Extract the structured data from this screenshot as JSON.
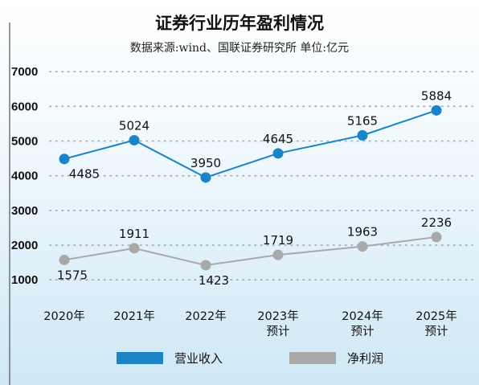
{
  "chart_data": {
    "type": "line",
    "title": "证券行业历年盈利情况",
    "subtitle": "数据来源:wind、国联证券研究所 单位:亿元",
    "categories": [
      [
        "2020年"
      ],
      [
        "2021年"
      ],
      [
        "2022年"
      ],
      [
        "2023年",
        "预计"
      ],
      [
        "2024年",
        "预计"
      ],
      [
        "2025年",
        "预计"
      ]
    ],
    "yticks": [
      1000,
      2000,
      3000,
      4000,
      5000,
      6000,
      7000
    ],
    "ylim": [
      1000,
      7000
    ],
    "grid": true,
    "legend_position": "bottom",
    "series": [
      {
        "name": "营业收入",
        "color": "#1a84c6",
        "values": [
          4485,
          5024,
          3950,
          4645,
          5165,
          5884
        ]
      },
      {
        "name": "净利润",
        "color": "#a9a9a9",
        "values": [
          1575,
          1911,
          1423,
          1719,
          1963,
          2236
        ]
      }
    ]
  }
}
